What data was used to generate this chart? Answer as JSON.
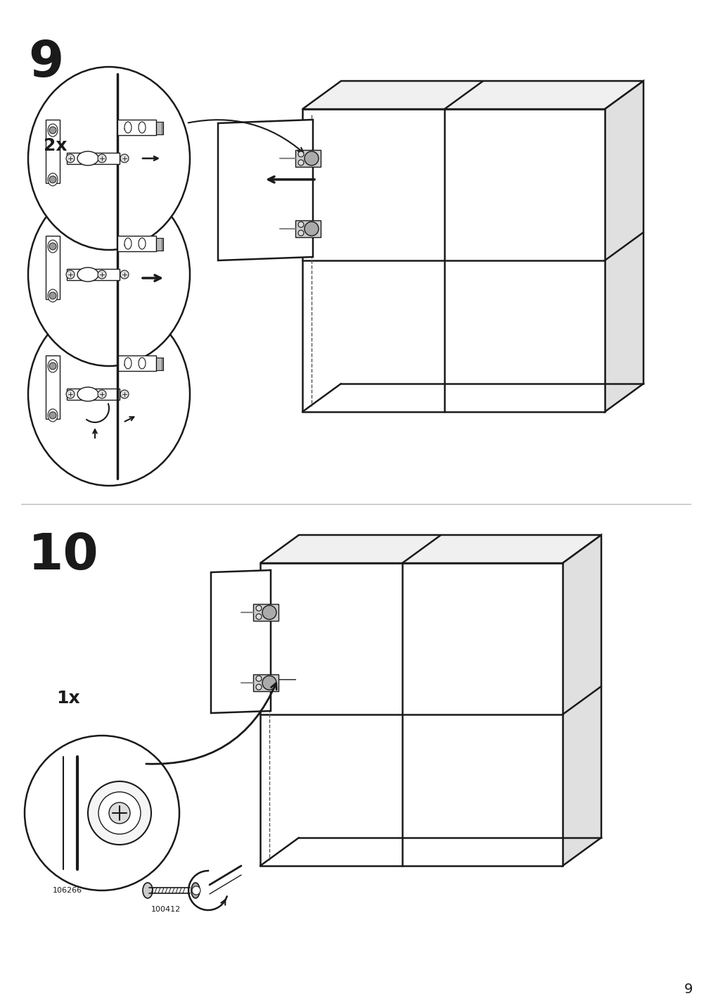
{
  "page_number": "9",
  "background_color": "#ffffff",
  "line_color": "#1a1a1a",
  "step9_label": "9",
  "step10_label": "10",
  "multiplier_top": "2x",
  "multiplier_bottom": "1x",
  "part_number_1": "106266",
  "part_number_2": "100412",
  "page_num_display": "9",
  "fig_width": 10.12,
  "fig_height": 14.32
}
